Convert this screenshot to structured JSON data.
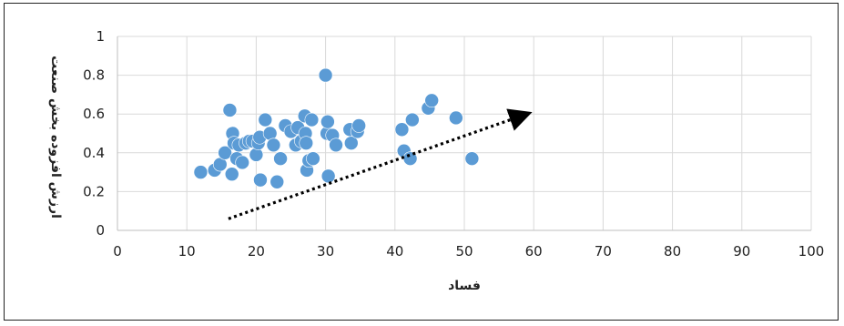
{
  "chart_data": {
    "type": "scatter",
    "title": "",
    "xlabel": "فساد",
    "ylabel": "ارزش افزوده بخش صنعت",
    "xlim": [
      0,
      100
    ],
    "ylim": [
      0,
      1
    ],
    "x_ticks": [
      0,
      10,
      20,
      30,
      40,
      50,
      60,
      70,
      80,
      90,
      100
    ],
    "y_ticks": [
      0,
      0.2,
      0.4,
      0.6,
      0.8,
      1
    ],
    "x_tick_labels": [
      "0",
      "10",
      "20",
      "30",
      "40",
      "50",
      "60",
      "70",
      "80",
      "90",
      "100"
    ],
    "y_tick_labels": [
      "0",
      "0.2",
      "0.4",
      "0.6",
      "0.8",
      "1"
    ],
    "grid": true,
    "legend": "none",
    "marker_color": "#5B9BD5",
    "series": [
      {
        "points": [
          [
            12,
            0.3
          ],
          [
            14,
            0.31
          ],
          [
            14.8,
            0.34
          ],
          [
            15.5,
            0.4
          ],
          [
            16.2,
            0.62
          ],
          [
            16.5,
            0.29
          ],
          [
            16.6,
            0.5
          ],
          [
            16.8,
            0.45
          ],
          [
            17.2,
            0.37
          ],
          [
            17.5,
            0.44
          ],
          [
            18,
            0.35
          ],
          [
            18.5,
            0.45
          ],
          [
            19,
            0.46
          ],
          [
            19.5,
            0.46
          ],
          [
            20,
            0.39
          ],
          [
            20.3,
            0.45
          ],
          [
            20.5,
            0.48
          ],
          [
            20.6,
            0.26
          ],
          [
            21.3,
            0.57
          ],
          [
            22,
            0.5
          ],
          [
            22.5,
            0.44
          ],
          [
            23,
            0.25
          ],
          [
            23.5,
            0.37
          ],
          [
            24.2,
            0.54
          ],
          [
            25,
            0.51
          ],
          [
            25.7,
            0.44
          ],
          [
            26,
            0.53
          ],
          [
            26.5,
            0.46
          ],
          [
            27,
            0.59
          ],
          [
            27.1,
            0.5
          ],
          [
            27.2,
            0.45
          ],
          [
            27.3,
            0.31
          ],
          [
            27.6,
            0.36
          ],
          [
            28,
            0.57
          ],
          [
            28.2,
            0.37
          ],
          [
            30,
            0.8
          ],
          [
            30.2,
            0.5
          ],
          [
            30.3,
            0.56
          ],
          [
            30.4,
            0.28
          ],
          [
            31,
            0.49
          ],
          [
            31.5,
            0.44
          ],
          [
            33.5,
            0.52
          ],
          [
            33.7,
            0.45
          ],
          [
            34.6,
            0.51
          ],
          [
            34.8,
            0.54
          ],
          [
            41,
            0.52
          ],
          [
            41.3,
            0.41
          ],
          [
            42.2,
            0.37
          ],
          [
            42.5,
            0.57
          ],
          [
            44.8,
            0.63
          ],
          [
            45.3,
            0.67
          ],
          [
            48.8,
            0.58
          ],
          [
            51.1,
            0.37
          ]
        ]
      }
    ],
    "trend_arrow": {
      "from": [
        16,
        0.06
      ],
      "to": [
        59,
        0.6
      ],
      "style": "dotted",
      "color": "#000000"
    }
  }
}
